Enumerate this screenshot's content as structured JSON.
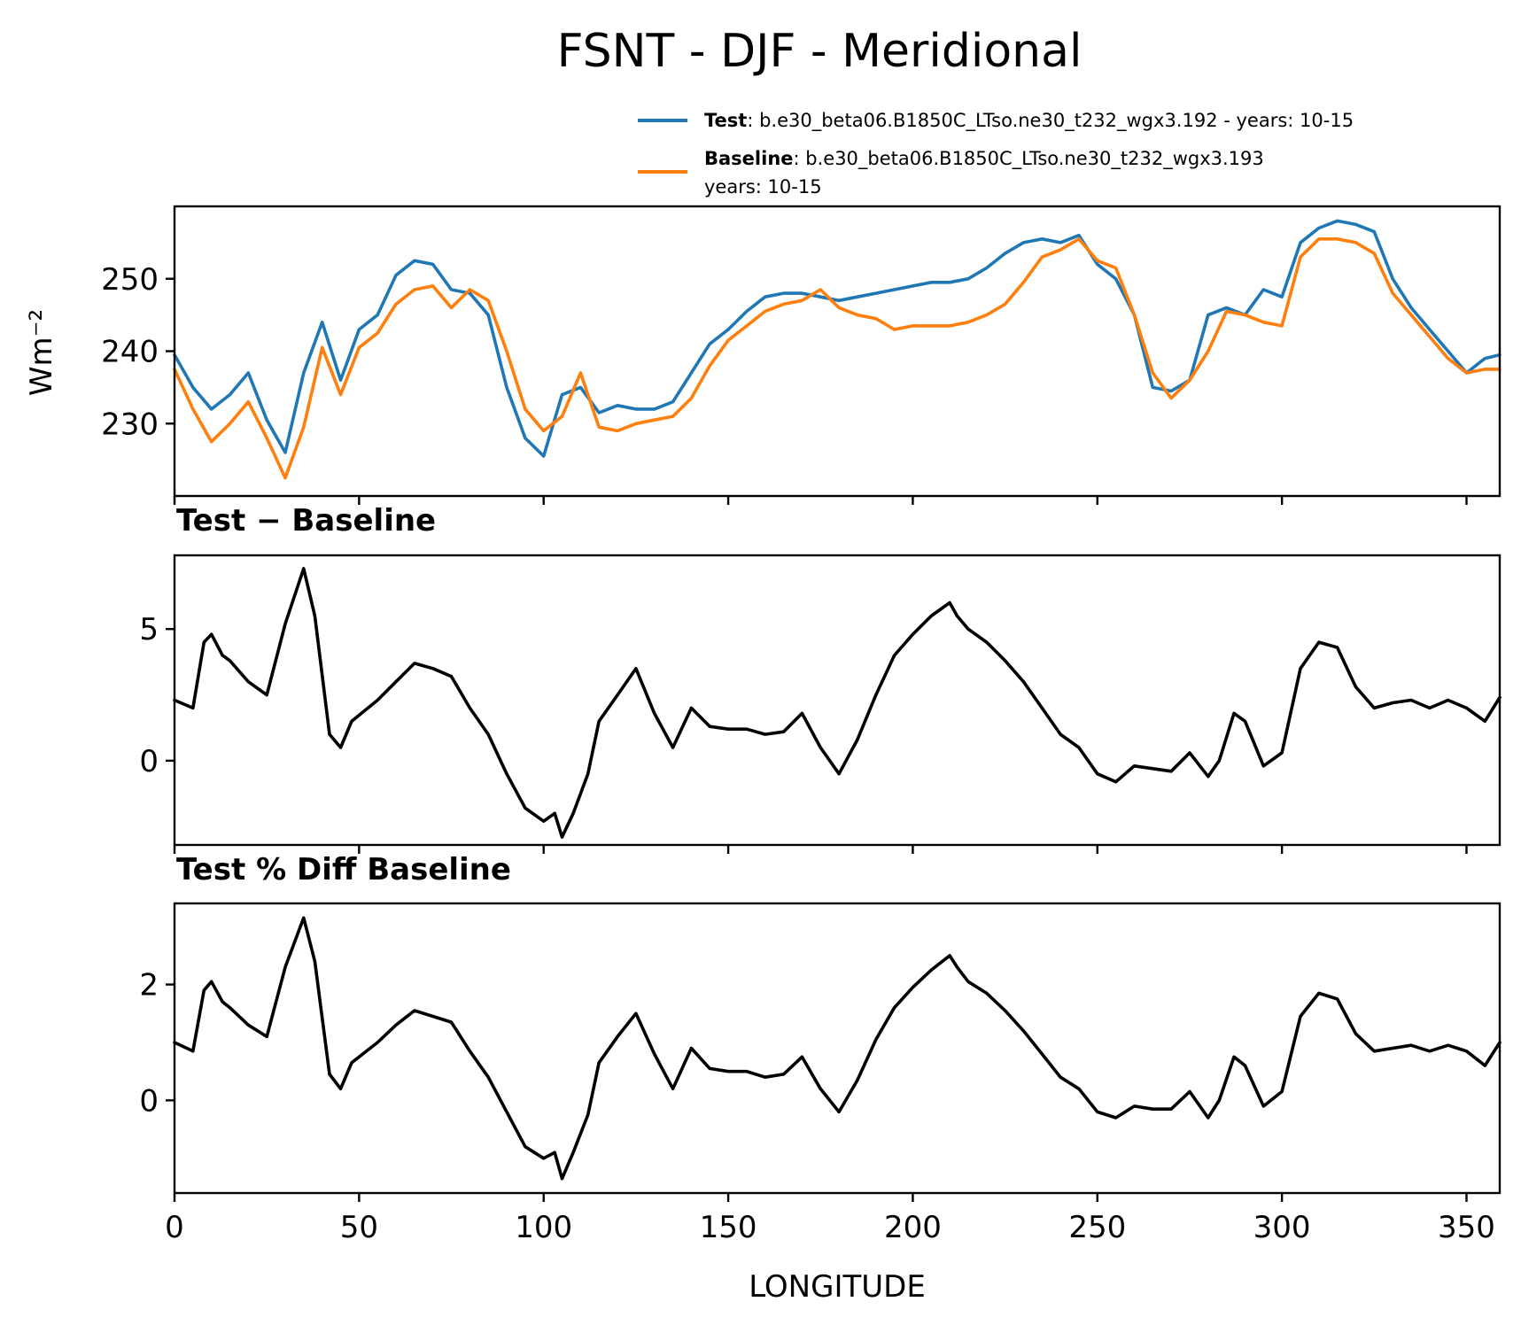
{
  "figure": {
    "title": "FSNT - DJF - Meridional",
    "xlabel": "LONGITUDE"
  },
  "legend": {
    "test_name": "Test",
    "test_desc": ": b.e30_beta06.B1850C_LTso.ne30_t232_wgx3.192 - years: 10-15",
    "baseline_name": "Baseline",
    "baseline_desc": ": b.e30_beta06.B1850C_LTso.ne30_t232_wgx3.193",
    "baseline_desc2": "years: 10-15"
  },
  "colors": {
    "test": "#1f77b4",
    "baseline": "#ff7f0e",
    "diff": "#000000"
  },
  "chart_data": [
    {
      "type": "line",
      "title": "",
      "xlabel": "",
      "ylabel": "Wm⁻²",
      "xlim": [
        0,
        359
      ],
      "ylim": [
        220,
        260
      ],
      "yticks": [
        230,
        240,
        250
      ],
      "ytick_labels": [
        "230",
        "240",
        "250"
      ],
      "xticks": [
        0,
        50,
        100,
        150,
        200,
        250,
        300,
        350
      ],
      "show_xtick_labels": false,
      "series": [
        {
          "name": "Test",
          "color_key": "test",
          "x": [
            0,
            5,
            10,
            15,
            20,
            25,
            30,
            35,
            40,
            45,
            50,
            55,
            60,
            65,
            70,
            75,
            80,
            85,
            90,
            95,
            100,
            105,
            110,
            115,
            120,
            125,
            130,
            135,
            140,
            145,
            150,
            155,
            160,
            165,
            170,
            175,
            180,
            185,
            190,
            195,
            200,
            205,
            210,
            215,
            220,
            225,
            230,
            235,
            240,
            245,
            250,
            255,
            260,
            265,
            270,
            275,
            280,
            285,
            290,
            295,
            300,
            305,
            310,
            315,
            320,
            325,
            330,
            335,
            340,
            345,
            350,
            355,
            359
          ],
          "values": [
            239.5,
            235.0,
            232.0,
            234.0,
            237.0,
            230.5,
            226.0,
            237.0,
            244.0,
            236.0,
            243.0,
            245.0,
            250.5,
            252.5,
            252.0,
            248.5,
            248.0,
            245.0,
            235.0,
            228.0,
            225.5,
            234.0,
            235.0,
            231.5,
            232.5,
            232.0,
            232.0,
            233.0,
            237.0,
            241.0,
            243.0,
            245.5,
            247.5,
            248.0,
            248.0,
            247.5,
            247.0,
            247.5,
            248.0,
            248.5,
            249.0,
            249.5,
            249.5,
            250.0,
            251.5,
            253.5,
            255.0,
            255.5,
            255.0,
            256.0,
            252.0,
            250.0,
            245.0,
            235.0,
            234.5,
            236.0,
            245.0,
            246.0,
            245.0,
            248.5,
            247.5,
            255.0,
            257.0,
            258.0,
            257.5,
            256.5,
            250.0,
            246.0,
            243.0,
            240.0,
            237.0,
            239.0,
            239.5
          ]
        },
        {
          "name": "Baseline",
          "color_key": "baseline",
          "x": [
            0,
            5,
            10,
            15,
            20,
            25,
            30,
            35,
            40,
            45,
            50,
            55,
            60,
            65,
            70,
            75,
            80,
            85,
            90,
            95,
            100,
            105,
            110,
            115,
            120,
            125,
            130,
            135,
            140,
            145,
            150,
            155,
            160,
            165,
            170,
            175,
            180,
            185,
            190,
            195,
            200,
            205,
            210,
            215,
            220,
            225,
            230,
            235,
            240,
            245,
            250,
            255,
            260,
            265,
            270,
            275,
            280,
            285,
            290,
            295,
            300,
            305,
            310,
            315,
            320,
            325,
            330,
            335,
            340,
            345,
            350,
            355,
            359
          ],
          "values": [
            237.5,
            232.0,
            227.5,
            230.0,
            233.0,
            228.0,
            222.5,
            229.5,
            240.5,
            234.0,
            240.5,
            242.5,
            246.5,
            248.5,
            249.0,
            246.0,
            248.5,
            247.0,
            240.0,
            232.0,
            229.0,
            231.0,
            237.0,
            229.5,
            229.0,
            230.0,
            230.5,
            231.0,
            233.5,
            238.0,
            241.5,
            243.5,
            245.5,
            246.5,
            247.0,
            248.5,
            246.0,
            245.0,
            244.5,
            243.0,
            243.5,
            243.5,
            243.5,
            244.0,
            245.0,
            246.5,
            249.5,
            253.0,
            254.0,
            255.5,
            252.5,
            251.5,
            245.0,
            237.0,
            233.5,
            236.0,
            240.0,
            245.5,
            245.0,
            244.0,
            243.5,
            253.0,
            255.5,
            255.5,
            255.0,
            253.5,
            248.0,
            245.0,
            242.0,
            239.0,
            237.0,
            237.5,
            237.5
          ]
        }
      ]
    },
    {
      "type": "line",
      "title": "Test − Baseline",
      "xlabel": "",
      "ylabel": "",
      "xlim": [
        0,
        359
      ],
      "ylim": [
        -3.2,
        7.8
      ],
      "yticks": [
        0,
        5
      ],
      "ytick_labels": [
        "0",
        "5"
      ],
      "xticks": [
        0,
        50,
        100,
        150,
        200,
        250,
        300,
        350
      ],
      "show_xtick_labels": false,
      "series": [
        {
          "name": "Test − Baseline",
          "color_key": "diff",
          "x": [
            0,
            5,
            8,
            10,
            13,
            15,
            20,
            25,
            30,
            35,
            38,
            42,
            45,
            48,
            55,
            60,
            65,
            70,
            75,
            80,
            85,
            90,
            95,
            100,
            103,
            105,
            108,
            112,
            115,
            120,
            125,
            130,
            135,
            140,
            145,
            150,
            155,
            160,
            165,
            170,
            175,
            180,
            185,
            190,
            195,
            200,
            205,
            210,
            212,
            215,
            220,
            225,
            230,
            235,
            240,
            245,
            250,
            255,
            260,
            265,
            270,
            275,
            280,
            283,
            287,
            290,
            295,
            300,
            305,
            310,
            315,
            320,
            325,
            330,
            335,
            340,
            345,
            350,
            355,
            359
          ],
          "values": [
            2.3,
            2.0,
            4.5,
            4.8,
            4.0,
            3.8,
            3.0,
            2.5,
            5.2,
            7.3,
            5.5,
            1.0,
            0.5,
            1.5,
            2.3,
            3.0,
            3.7,
            3.5,
            3.2,
            2.0,
            1.0,
            -0.5,
            -1.8,
            -2.3,
            -2.0,
            -2.9,
            -2.0,
            -0.5,
            1.5,
            2.5,
            3.5,
            1.8,
            0.5,
            2.0,
            1.3,
            1.2,
            1.2,
            1.0,
            1.1,
            1.8,
            0.5,
            -0.5,
            0.8,
            2.5,
            4.0,
            4.8,
            5.5,
            6.0,
            5.5,
            5.0,
            4.5,
            3.8,
            3.0,
            2.0,
            1.0,
            0.5,
            -0.5,
            -0.8,
            -0.2,
            -0.3,
            -0.4,
            0.3,
            -0.6,
            0.0,
            1.8,
            1.5,
            -0.2,
            0.3,
            3.5,
            4.5,
            4.3,
            2.8,
            2.0,
            2.2,
            2.3,
            2.0,
            2.3,
            2.0,
            1.5,
            2.4
          ]
        }
      ]
    },
    {
      "type": "line",
      "title": "Test % Diff Baseline",
      "xlabel": "LONGITUDE",
      "ylabel": "",
      "xlim": [
        0,
        359
      ],
      "ylim": [
        -1.6,
        3.4
      ],
      "yticks": [
        0,
        2
      ],
      "ytick_labels": [
        "0",
        "2"
      ],
      "xticks": [
        0,
        50,
        100,
        150,
        200,
        250,
        300,
        350
      ],
      "xtick_labels": [
        "0",
        "50",
        "100",
        "150",
        "200",
        "250",
        "300",
        "350"
      ],
      "show_xtick_labels": true,
      "series": [
        {
          "name": "Test % Diff Baseline",
          "color_key": "diff",
          "x": [
            0,
            5,
            8,
            10,
            13,
            15,
            20,
            25,
            30,
            35,
            38,
            42,
            45,
            48,
            55,
            60,
            65,
            70,
            75,
            80,
            85,
            90,
            95,
            100,
            103,
            105,
            108,
            112,
            115,
            120,
            125,
            130,
            135,
            140,
            145,
            150,
            155,
            160,
            165,
            170,
            175,
            180,
            185,
            190,
            195,
            200,
            205,
            210,
            212,
            215,
            220,
            225,
            230,
            235,
            240,
            245,
            250,
            255,
            260,
            265,
            270,
            275,
            280,
            283,
            287,
            290,
            295,
            300,
            305,
            310,
            315,
            320,
            325,
            330,
            335,
            340,
            345,
            350,
            355,
            359
          ],
          "values": [
            1.0,
            0.85,
            1.9,
            2.05,
            1.7,
            1.6,
            1.3,
            1.1,
            2.3,
            3.15,
            2.4,
            0.45,
            0.2,
            0.65,
            1.0,
            1.3,
            1.55,
            1.45,
            1.35,
            0.85,
            0.4,
            -0.2,
            -0.8,
            -1.0,
            -0.9,
            -1.35,
            -0.9,
            -0.25,
            0.65,
            1.1,
            1.5,
            0.8,
            0.2,
            0.9,
            0.55,
            0.5,
            0.5,
            0.4,
            0.45,
            0.75,
            0.2,
            -0.2,
            0.35,
            1.05,
            1.6,
            1.95,
            2.25,
            2.5,
            2.3,
            2.05,
            1.85,
            1.55,
            1.2,
            0.8,
            0.4,
            0.2,
            -0.2,
            -0.3,
            -0.1,
            -0.15,
            -0.15,
            0.15,
            -0.3,
            0.0,
            0.75,
            0.6,
            -0.1,
            0.15,
            1.45,
            1.85,
            1.75,
            1.15,
            0.85,
            0.9,
            0.95,
            0.85,
            0.95,
            0.85,
            0.6,
            1.0
          ]
        }
      ]
    }
  ]
}
